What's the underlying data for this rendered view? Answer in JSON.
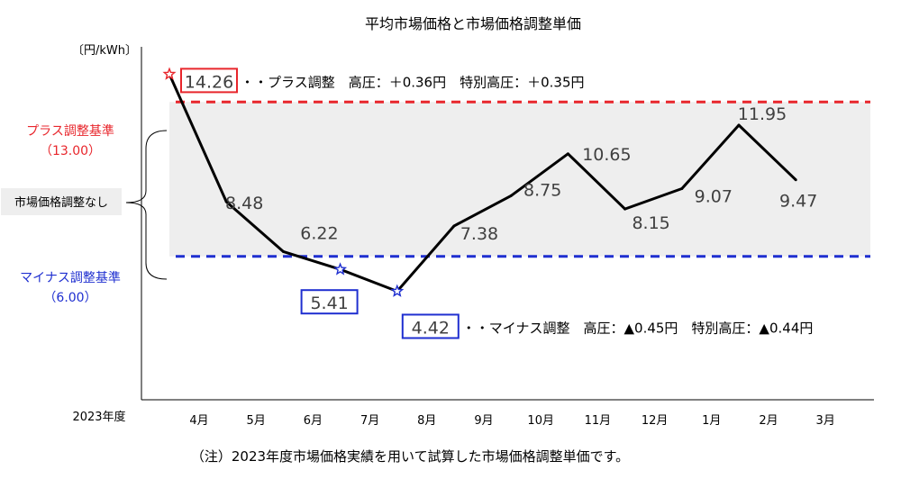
{
  "chart_data": {
    "type": "line",
    "title": "平均市場価格と市場価格調整単価",
    "ylabel": "〔円/kWh〕",
    "xlabel": "2023年度",
    "categories": [
      "4月",
      "5月",
      "6月",
      "7月",
      "8月",
      "9月",
      "10月",
      "11月",
      "12月",
      "1月",
      "2月",
      "3月"
    ],
    "values": [
      14.26,
      8.48,
      6.22,
      5.41,
      4.42,
      7.38,
      8.75,
      10.65,
      8.15,
      9.07,
      11.95,
      9.47
    ],
    "value_labels": [
      "14.26",
      "8.48",
      "6.22",
      "5.41",
      "4.42",
      "7.38",
      "8.75",
      "10.65",
      "8.15",
      "9.07",
      "11.95",
      "9.47"
    ],
    "ylim": [
      -0.5,
      15.5
    ],
    "grid": false,
    "upper_threshold": {
      "value": 13.0,
      "label": "プラス調整基準",
      "value_label": "（13.00）",
      "color": "#e8262c"
    },
    "lower_threshold": {
      "value": 6.0,
      "label": "マイナス調整基準",
      "value_label": "（6.00）",
      "color": "#1f2fd0"
    },
    "band_label": "市場価格調整なし",
    "band_color": "#eeeeee",
    "line_color": "#000000",
    "highlight_points": [
      {
        "index": 0,
        "color": "#e8262c",
        "note": "・・プラス調整　高圧：＋0.36円　特別高圧：＋0.35円"
      },
      {
        "index": 3,
        "color": "#1f2fd0",
        "note": ""
      },
      {
        "index": 4,
        "color": "#1f2fd0",
        "note": "・・マイナス調整　高圧：▲0.45円　特別高圧：▲0.44円"
      }
    ],
    "footnote": "（注）2023年度市場価格実績を用いて試算した市場価格調整単価です。"
  }
}
